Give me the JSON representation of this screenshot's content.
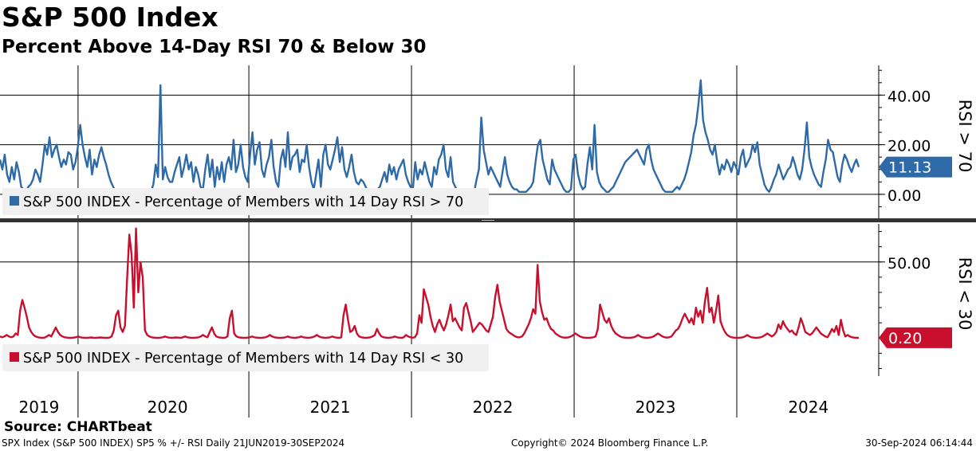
{
  "header": {
    "title": "S&P 500 Index",
    "subtitle": "Percent Above 14-Day RSI 70 & Below 30"
  },
  "source_label": "Source: CHARTbeat",
  "footer": {
    "left": "SPX Index (S&P 500 INDEX) SP5 % +/- RSI  Daily 21JUN2019-30SEP2024",
    "center": "Copyright© 2024 Bloomberg Finance L.P.",
    "right": "30-Sep-2024 06:14:44"
  },
  "colors": {
    "upper": "#2e6aa8",
    "lower": "#c8102e",
    "axis": "#000000"
  },
  "chart_data": [
    {
      "type": "line",
      "axis_title": "RSI > 70",
      "legend": "S&P 500 INDEX - Percentage of Members with 14 Day RSI > 70",
      "legend_position": "bottom-left",
      "last_value_label": "11.13",
      "ylim": [
        -10,
        52
      ],
      "yticks": [
        0,
        20,
        40
      ],
      "ytick_labels": [
        "0.00",
        "20.00",
        "40.00"
      ],
      "grid": true,
      "x_start": 2019.47,
      "x_end": 2024.75,
      "series": [
        {
          "values": [
            14,
            10,
            16,
            8,
            5,
            11,
            6,
            13,
            9,
            3,
            2,
            1,
            3,
            4,
            6,
            10,
            8,
            5,
            12,
            20,
            16,
            23,
            15,
            18,
            20,
            15,
            11,
            14,
            12,
            17,
            16,
            10,
            13,
            19,
            28,
            20,
            15,
            11,
            18,
            8,
            14,
            11,
            16,
            19,
            15,
            12,
            8,
            5,
            3,
            1,
            1,
            1,
            2,
            1,
            1,
            1,
            1,
            1,
            2,
            1,
            1,
            1,
            1,
            2,
            1,
            4,
            12,
            7,
            44,
            6,
            11,
            7,
            5,
            5,
            9,
            12,
            15,
            7,
            11,
            16,
            10,
            13,
            5,
            11,
            8,
            3,
            2,
            10,
            16,
            7,
            14,
            3,
            11,
            6,
            13,
            5,
            12,
            15,
            10,
            22,
            9,
            12,
            20,
            11,
            7,
            5,
            16,
            25,
            12,
            18,
            21,
            10,
            7,
            12,
            15,
            22,
            11,
            5,
            3,
            14,
            18,
            11,
            25,
            10,
            15,
            16,
            18,
            9,
            14,
            13,
            20,
            11,
            5,
            2,
            8,
            14,
            3,
            16,
            20,
            12,
            10,
            14,
            18,
            23,
            13,
            19,
            10,
            7,
            11,
            16,
            9,
            5,
            4,
            6,
            5,
            3,
            1,
            1,
            1,
            1,
            2,
            3,
            6,
            9,
            5,
            12,
            8,
            11,
            6,
            10,
            12,
            14,
            8,
            5,
            3,
            2,
            13,
            6,
            10,
            8,
            13,
            9,
            5,
            3,
            11,
            8,
            14,
            16,
            20,
            10,
            7,
            15,
            5,
            3,
            1,
            1,
            1,
            1,
            1,
            1,
            1,
            1,
            6,
            10,
            31,
            18,
            13,
            8,
            11,
            9,
            7,
            5,
            3,
            9,
            15,
            8,
            5,
            3,
            2,
            2,
            1,
            1,
            1,
            1,
            2,
            3,
            5,
            13,
            20,
            22,
            14,
            10,
            6,
            4,
            14,
            10,
            8,
            6,
            4,
            2,
            1,
            1,
            2,
            14,
            16,
            8,
            4,
            2,
            3,
            12,
            19,
            10,
            28,
            9,
            5,
            3,
            2,
            1,
            1,
            2,
            3,
            5,
            7,
            9,
            11,
            13,
            14,
            15,
            16,
            17,
            18,
            16,
            14,
            12,
            18,
            20,
            14,
            10,
            8,
            6,
            4,
            2,
            1,
            1,
            1,
            1,
            2,
            3,
            2,
            4,
            6,
            9,
            13,
            17,
            24,
            28,
            36,
            46,
            30,
            25,
            22,
            18,
            16,
            20,
            13,
            8,
            12,
            10,
            14,
            12,
            9,
            13,
            11,
            8,
            15,
            18,
            11,
            13,
            15,
            20,
            17,
            21,
            12,
            8,
            4,
            2,
            1,
            3,
            6,
            8,
            12,
            9,
            6,
            8,
            10,
            11,
            15,
            12,
            8,
            6,
            10,
            18,
            29,
            15,
            11,
            8,
            6,
            4,
            3,
            9,
            14,
            22,
            18,
            17,
            12,
            7,
            5,
            12,
            16,
            14,
            11,
            9,
            12,
            14,
            11
          ]
        }
      ]
    },
    {
      "type": "line",
      "axis_title": "RSI < 30",
      "legend": "S&P 500 INDEX - Percentage of Members with 14 Day RSI < 30",
      "legend_position": "bottom-left",
      "last_value_label": "0.20",
      "ylim": [
        -25,
        75
      ],
      "yticks": [
        50
      ],
      "ytick_labels": [
        "50.00"
      ],
      "grid": true,
      "x_start": 2019.47,
      "x_end": 2024.75,
      "series": [
        {
          "values": [
            1,
            0.5,
            1,
            2,
            1,
            0.5,
            1,
            3,
            2,
            18,
            25,
            20,
            14,
            7,
            4,
            2,
            1,
            0.5,
            0.3,
            0.2,
            0.3,
            1,
            2,
            1,
            4,
            7,
            4,
            2,
            1,
            0.5,
            0.3,
            0.2,
            0.2,
            0.3,
            0.5,
            1,
            0.5,
            0.3,
            0.2,
            0.2,
            0.3,
            0.4,
            0.2,
            0.2,
            0.3,
            0.4,
            0.3,
            0.2,
            0.2,
            0.3,
            1,
            5,
            15,
            18,
            7,
            4,
            8,
            40,
            68,
            55,
            20,
            72,
            30,
            50,
            40,
            5,
            2,
            1,
            0.5,
            0.3,
            0.2,
            0.2,
            0.3,
            0.5,
            1,
            0.5,
            0.3,
            0.2,
            0.3,
            0.4,
            0.3,
            0.2,
            0.5,
            1,
            0.5,
            0.3,
            0.2,
            0.2,
            0.3,
            0.5,
            1,
            2,
            1,
            0.5,
            4,
            7,
            3,
            1,
            0.5,
            0.3,
            0.2,
            0.3,
            1,
            13,
            18,
            3,
            1,
            0.5,
            0.3,
            0.2,
            0.2,
            0.3,
            0.5,
            1,
            0.5,
            0.3,
            0.2,
            0.2,
            0.3,
            0.5,
            1,
            2,
            1,
            0.5,
            0.3,
            0.2,
            0.2,
            0.3,
            0.5,
            1,
            0.5,
            0.3,
            0.2,
            0.3,
            0.5,
            1,
            0.5,
            0.3,
            0.2,
            0.3,
            0.5,
            1,
            2,
            1,
            0.5,
            0.3,
            0.2,
            0.3,
            0.5,
            1,
            0.5,
            0.3,
            0.2,
            0.5,
            15,
            22,
            12,
            4,
            5,
            8,
            3,
            1,
            0.5,
            0.3,
            0.2,
            0.3,
            0.5,
            1,
            2,
            6,
            3,
            1,
            0.5,
            0.3,
            0.2,
            0.3,
            0.5,
            1,
            0.5,
            0.3,
            0.2,
            0.5,
            2,
            1,
            0.5,
            0.3,
            0.5,
            3,
            15,
            10,
            32,
            27,
            22,
            14,
            8,
            4,
            9,
            12,
            8,
            5,
            9,
            15,
            22,
            11,
            13,
            10,
            7,
            5,
            20,
            23,
            17,
            11,
            4,
            6,
            8,
            10,
            9,
            7,
            5,
            4,
            9,
            14,
            27,
            35,
            24,
            18,
            12,
            6,
            4,
            3,
            2,
            1,
            0.5,
            0.5,
            1,
            3,
            6,
            9,
            13,
            19,
            16,
            48,
            24,
            17,
            12,
            13,
            9,
            6,
            5,
            3,
            2,
            1,
            0.5,
            0.3,
            0.3,
            0.5,
            1,
            2,
            3,
            2,
            1,
            0.5,
            0.3,
            0.2,
            0.2,
            0.3,
            0.5,
            1,
            6,
            22,
            17,
            12,
            10,
            13,
            8,
            5,
            3,
            2,
            1,
            0.5,
            0.3,
            0.2,
            0.2,
            0.3,
            0.5,
            1,
            2,
            1,
            0.5,
            0.3,
            0.2,
            0.3,
            0.5,
            1,
            2,
            3,
            2,
            1,
            0.5,
            0.3,
            0.5,
            1,
            3,
            5,
            6,
            9,
            13,
            16,
            13,
            10,
            13,
            9,
            20,
            14,
            18,
            10,
            24,
            33,
            17,
            20,
            10,
            18,
            28,
            11,
            7,
            4,
            2,
            1,
            0.5,
            0.3,
            0.2,
            0.2,
            0.3,
            0.5,
            1,
            2,
            1,
            0.5,
            0.3,
            0.2,
            0.3,
            0.5,
            1,
            2,
            3,
            2,
            1,
            2,
            4,
            9,
            6,
            11,
            8,
            6,
            4,
            5,
            3,
            2,
            7,
            13,
            9,
            4,
            3,
            2,
            3,
            5,
            7,
            5,
            3,
            2,
            1,
            0.5,
            3,
            6,
            4,
            8,
            2,
            12,
            5,
            1,
            2,
            1,
            0.5,
            0.3,
            0.2,
            0.2
          ]
        }
      ]
    }
  ],
  "x_axis": {
    "year_boundaries": [
      2019.95,
      2021.0,
      2022.0,
      2023.0,
      2024.0
    ],
    "labels": [
      {
        "text": "2019",
        "x": 2019.71
      },
      {
        "text": "2020",
        "x": 2020.5
      },
      {
        "text": "2021",
        "x": 2021.5
      },
      {
        "text": "2022",
        "x": 2022.5
      },
      {
        "text": "2023",
        "x": 2023.5
      },
      {
        "text": "2024",
        "x": 2024.44
      }
    ]
  }
}
